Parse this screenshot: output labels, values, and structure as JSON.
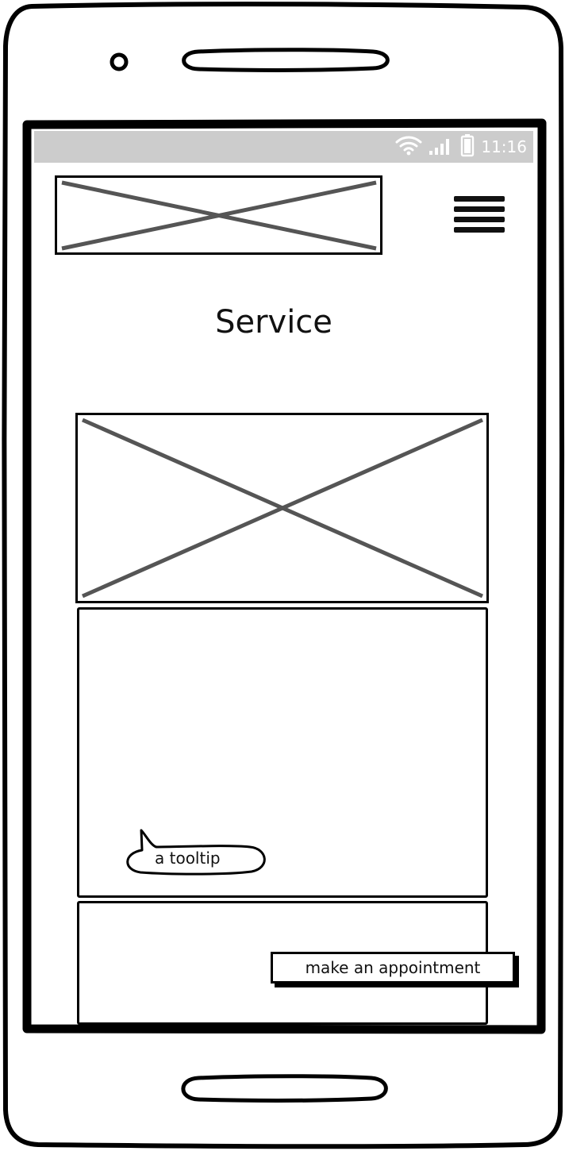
{
  "status_bar": {
    "time": "11:16",
    "icons": [
      "wifi-icon",
      "signal-icon",
      "battery-icon"
    ]
  },
  "header": {
    "logo": "image-placeholder",
    "menu_icon": "hamburger-menu-icon"
  },
  "main": {
    "title": "Service",
    "hero_image": "image-placeholder",
    "tooltip_text": "a tooltip",
    "appointment_button_label": "make an appointment"
  },
  "colors": {
    "status_bar_bg": "#cccccc",
    "placeholder_cross": "#555555",
    "outline": "#000000"
  }
}
